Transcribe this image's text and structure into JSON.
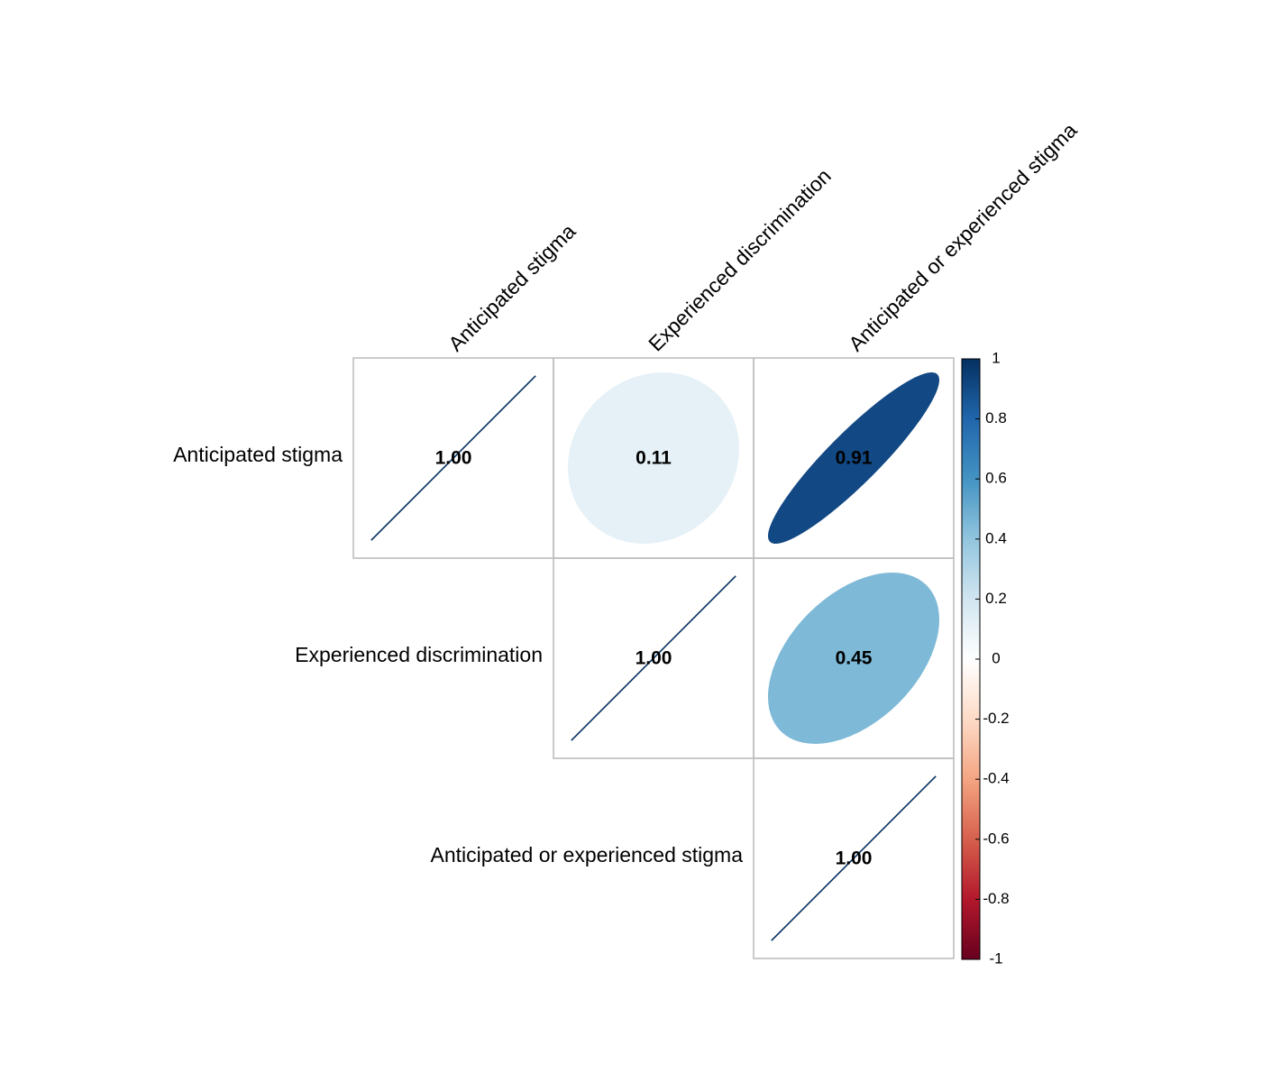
{
  "chart_data": {
    "type": "heatmap",
    "variables": [
      "Anticipated stigma",
      "Experienced discrimination",
      "Anticipated or experienced stigma"
    ],
    "layout": "upper-triangle",
    "method": "ellipse",
    "matrix": [
      [
        1.0,
        0.11,
        0.91
      ],
      [
        0.11,
        1.0,
        0.45
      ],
      [
        0.91,
        0.45,
        1.0
      ]
    ],
    "cell_labels": [
      [
        "1.00",
        "0.11",
        "0.91"
      ],
      [
        "",
        "1.00",
        "0.45"
      ],
      [
        "",
        "",
        "1.00"
      ]
    ],
    "colorbar": {
      "range": [
        -1,
        1
      ],
      "ticks": [
        "1",
        "0.8",
        "0.6",
        "0.4",
        "0.2",
        "0",
        "-0.2",
        "-0.4",
        "-0.6",
        "-0.8",
        "-1"
      ],
      "colors": [
        "#67001F",
        "#B2182B",
        "#D6604D",
        "#F4A582",
        "#FDDBC7",
        "#FFFFFF",
        "#D1E5F0",
        "#92C5DE",
        "#4393C3",
        "#2166AC",
        "#053061"
      ]
    },
    "grid_color": "#BEBEBE"
  }
}
